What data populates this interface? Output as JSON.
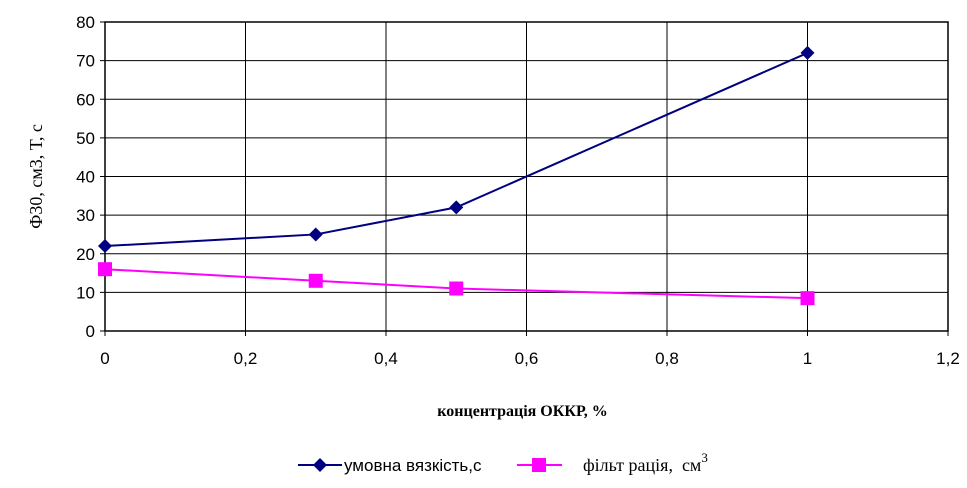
{
  "chart_data": {
    "type": "line",
    "title": "",
    "xlabel": "концентрація ОККР, %",
    "ylabel": "Ф30, см3,   Т, с",
    "xlim": [
      0,
      1.2
    ],
    "ylim": [
      0,
      80
    ],
    "x_ticks": [
      "0",
      "0,2",
      "0,4",
      "0,6",
      "0,8",
      "1",
      "1,2"
    ],
    "y_ticks": [
      "0",
      "10",
      "20",
      "30",
      "40",
      "50",
      "60",
      "70",
      "80"
    ],
    "grid": true,
    "legend_position": "bottom",
    "series": [
      {
        "name": "умовна вязкість,с",
        "color": "#000080",
        "marker": "diamond",
        "x": [
          0,
          0.3,
          0.5,
          1
        ],
        "y": [
          22,
          25,
          32,
          72
        ]
      },
      {
        "name": "фільт рація,  см",
        "name_superscript": "3",
        "color": "#ff00ff",
        "marker": "square",
        "x": [
          0,
          0.3,
          0.5,
          1
        ],
        "y": [
          16,
          13,
          11,
          8.5
        ]
      }
    ]
  }
}
